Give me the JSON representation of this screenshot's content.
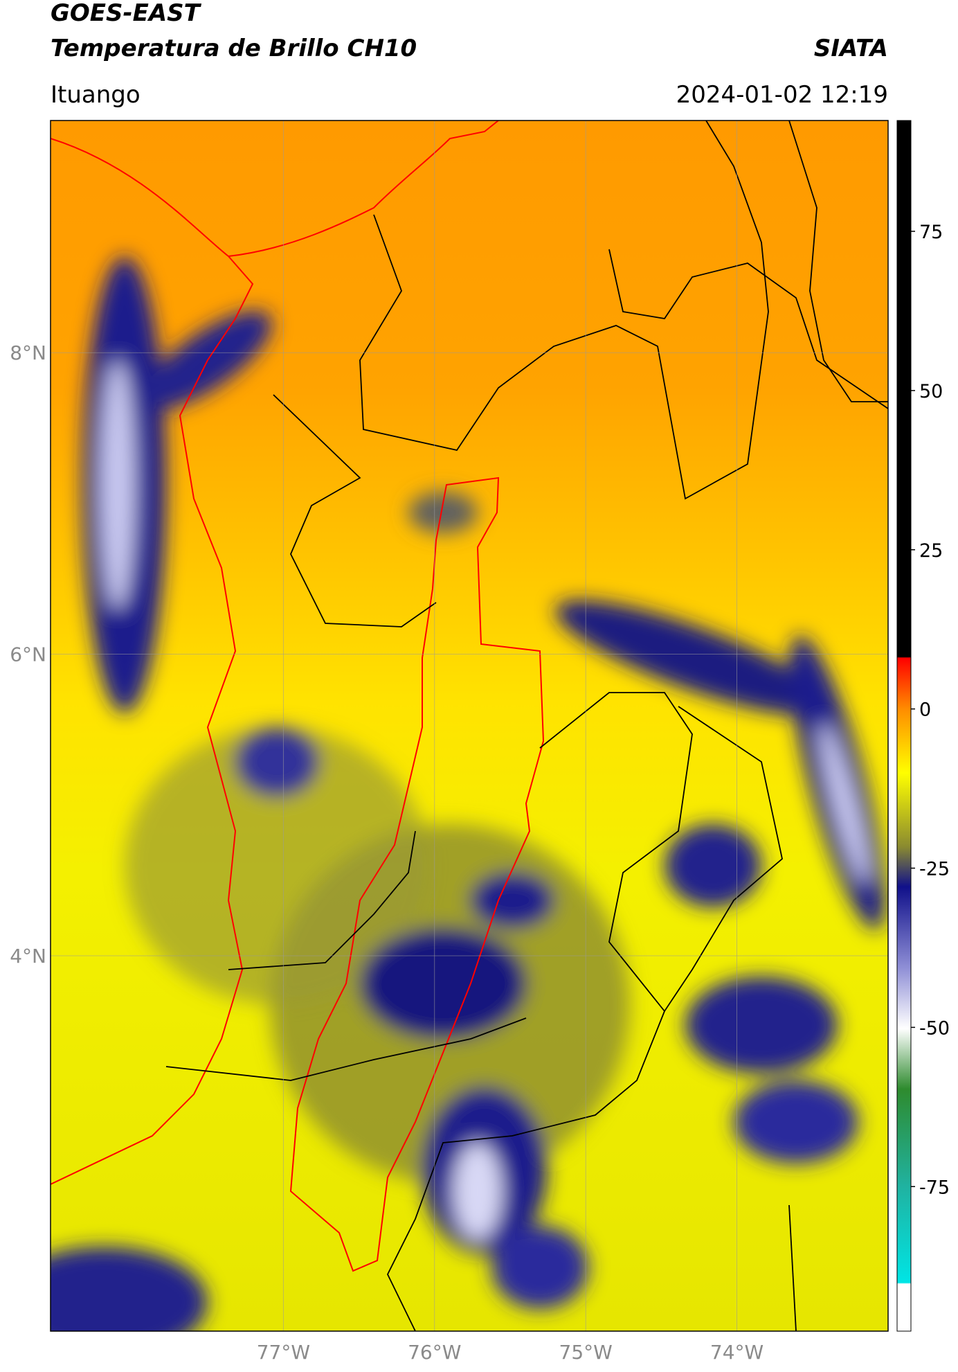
{
  "header": {
    "title": "GOES-EAST",
    "subtitle": "Temperatura de Brillo CH10",
    "source": "SIATA",
    "region": "Ituango",
    "datetime": "2024-01-02 12:19"
  },
  "map": {
    "lat_range": [
      1.51,
      9.54
    ],
    "lon_range": [
      -78.54,
      -73.0
    ],
    "lat_ticks": [
      {
        "value": 8,
        "label": "8°N"
      },
      {
        "value": 6,
        "label": "6°N"
      },
      {
        "value": 4,
        "label": "4°N"
      }
    ],
    "lon_ticks": [
      {
        "value": -77,
        "label": "77°W"
      },
      {
        "value": -76,
        "label": "76°W"
      },
      {
        "value": -75,
        "label": "75°W"
      },
      {
        "value": -74,
        "label": "74°W"
      }
    ]
  },
  "colorbar": {
    "range": [
      -97.7,
      92.4
    ],
    "ticks": [
      75,
      50,
      25,
      0,
      -25,
      -50,
      -75
    ]
  }
}
